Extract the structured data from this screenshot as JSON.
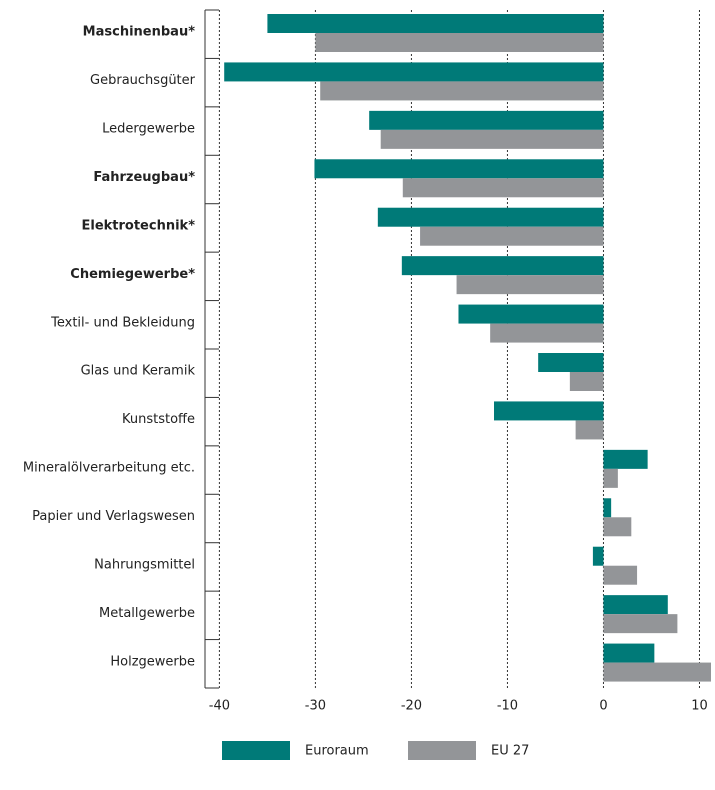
{
  "chart_data": {
    "type": "hbar",
    "categories": [
      "Maschinenbau*",
      "Gebrauchsgüter",
      "Ledergewerbe",
      "Fahrzeugbau*",
      "Elektrotechnik*",
      "Chemiegewerbe*",
      "Textil- und Bekleidung",
      "Glas und Keramik",
      "Kunststoffe",
      "Mineralölverarbeitung etc.",
      "Papier und Verlagswesen",
      "Nahrungsmittel",
      "Metallgewerbe",
      "Holzgewerbe"
    ],
    "bold": [
      true,
      false,
      false,
      true,
      true,
      true,
      false,
      false,
      false,
      false,
      false,
      false,
      false,
      false
    ],
    "series": [
      {
        "name": "Euroraum",
        "color": "#007a78",
        "values": [
          -35,
          -39.5,
          -24.4,
          -30.1,
          -23.5,
          -21,
          -15.1,
          -6.8,
          -11.4,
          4.6,
          0.8,
          -1.1,
          6.7,
          5.3
        ]
      },
      {
        "name": "EU 27",
        "color": "#939598",
        "values": [
          -30,
          -29.5,
          -23.2,
          -20.9,
          -19.1,
          -15.3,
          -11.8,
          -3.5,
          -2.9,
          1.5,
          2.9,
          3.5,
          7.7,
          11.2
        ]
      }
    ],
    "xlim": [
      -41.5,
      11.2
    ],
    "xticks": [
      -40,
      -30,
      -20,
      -10,
      0,
      10
    ],
    "grid": true
  }
}
